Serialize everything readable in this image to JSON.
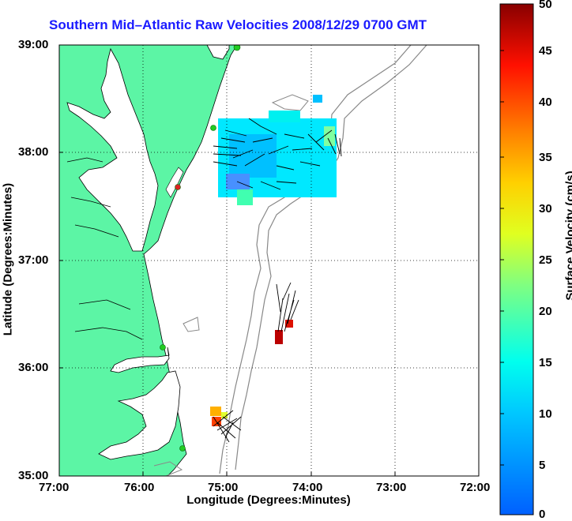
{
  "title": "Southern Mid–Atlantic Raw Velocities 2008/12/29 0700 GMT",
  "axes": {
    "xlabel": "Longitude (Degrees:Minutes)",
    "ylabel": "Latitude (Degrees:Minutes)",
    "xticks": [
      "77:00",
      "76:00",
      "75:00",
      "74:00",
      "73:00",
      "72:00"
    ],
    "yticks": [
      "39:00",
      "38:00",
      "37:00",
      "36:00",
      "35:00"
    ],
    "xrange_deg_west": [
      77,
      72
    ],
    "yrange_deg_north": [
      35,
      39
    ],
    "grid": "dotted"
  },
  "colorbar": {
    "label": "Surface Velocity (cm/s)",
    "ticks": [
      "50",
      "45",
      "40",
      "35",
      "30",
      "25",
      "20",
      "15",
      "10",
      "5",
      "0"
    ],
    "range": [
      0,
      50
    ],
    "colormap": "jet"
  },
  "colors": {
    "title": "#1a1aff",
    "land": "#5cf5a5",
    "water": "#ffffff",
    "bathymetry": "#888888"
  },
  "stations": [
    {
      "color": "#22cc22"
    },
    {
      "color": "#22cc22"
    },
    {
      "color": "#dd2222"
    },
    {
      "color": "#22cc22"
    },
    {
      "color": "#22cc22"
    }
  ]
}
